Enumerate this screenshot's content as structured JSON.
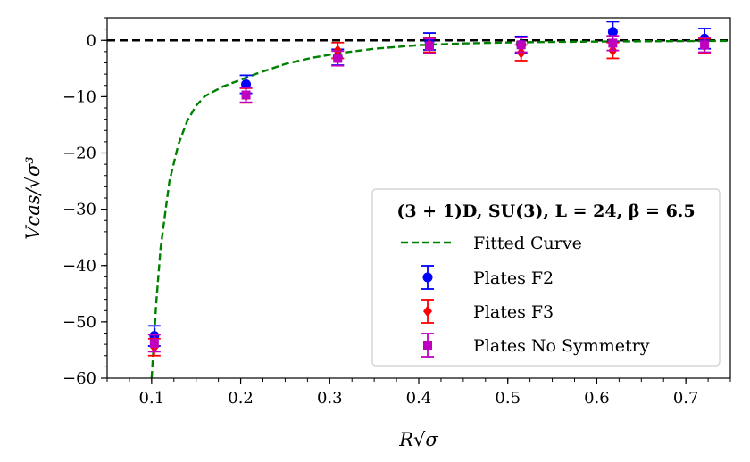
{
  "chart_data": {
    "type": "scatter",
    "title": "",
    "xlabel": "R√σ",
    "ylabel": "Vcas/√σ³",
    "xlim": [
      0.05,
      0.75
    ],
    "ylim": [
      -60,
      4
    ],
    "xticks": [
      0.1,
      0.2,
      0.3,
      0.4,
      0.5,
      0.6,
      0.7
    ],
    "xtick_labels": [
      "0.1",
      "0.2",
      "0.3",
      "0.4",
      "0.5",
      "0.6",
      "0.7"
    ],
    "yticks": [
      0,
      -10,
      -20,
      -30,
      -40,
      -50,
      -60
    ],
    "ytick_labels": [
      "0",
      "−10",
      "−20",
      "−30",
      "−40",
      "−50",
      "−60"
    ],
    "grid": false,
    "reference_line": {
      "y": 0,
      "style": "dashed",
      "color": "#000000"
    },
    "legend": {
      "placement": "lower-right",
      "title": "(3 + 1)D, SU(3), L = 24, β = 6.5"
    },
    "fitted_curve": {
      "name": "Fitted Curve",
      "color": "#008000",
      "style": "dashed",
      "x": [
        0.1,
        0.105,
        0.11,
        0.12,
        0.13,
        0.14,
        0.15,
        0.16,
        0.18,
        0.2,
        0.22,
        0.25,
        0.28,
        0.31,
        0.35,
        0.4,
        0.45,
        0.5,
        0.55,
        0.6,
        0.65,
        0.7,
        0.75
      ],
      "y": [
        -60,
        -47,
        -37,
        -25,
        -18.5,
        -14.3,
        -11.6,
        -9.9,
        -8.2,
        -7.0,
        -5.8,
        -4.2,
        -3.1,
        -2.3,
        -1.5,
        -0.85,
        -0.55,
        -0.38,
        -0.28,
        -0.22,
        -0.17,
        -0.13,
        -0.1
      ]
    },
    "series": [
      {
        "name": "Plates F2",
        "color": "#0000ff",
        "marker": "circle",
        "x": [
          0.103,
          0.206,
          0.309,
          0.412,
          0.515,
          0.618,
          0.721
        ],
        "y": [
          -52.5,
          -7.8,
          -3.0,
          -0.2,
          -0.8,
          1.5,
          0.3
        ],
        "err": [
          1.8,
          1.6,
          1.4,
          1.5,
          1.5,
          1.8,
          1.8
        ]
      },
      {
        "name": "Plates F3",
        "color": "#ff0000",
        "marker": "diamond",
        "x": [
          0.103,
          0.206,
          0.309,
          0.412,
          0.515,
          0.618,
          0.721
        ],
        "y": [
          -54.5,
          -9.8,
          -1.8,
          -0.8,
          -2.2,
          -1.8,
          -1.0
        ],
        "err": [
          1.5,
          1.3,
          1.4,
          1.3,
          1.4,
          1.4,
          1.3
        ]
      },
      {
        "name": "Plates No Symmetry",
        "color": "#bf00bf",
        "marker": "square",
        "x": [
          0.103,
          0.206,
          0.309,
          0.412,
          0.515,
          0.618,
          0.721
        ],
        "y": [
          -53.8,
          -9.7,
          -3.2,
          -1.0,
          -0.8,
          -0.5,
          -0.8
        ],
        "err": [
          1.5,
          1.3,
          1.3,
          1.3,
          1.3,
          1.3,
          1.3
        ]
      }
    ]
  }
}
